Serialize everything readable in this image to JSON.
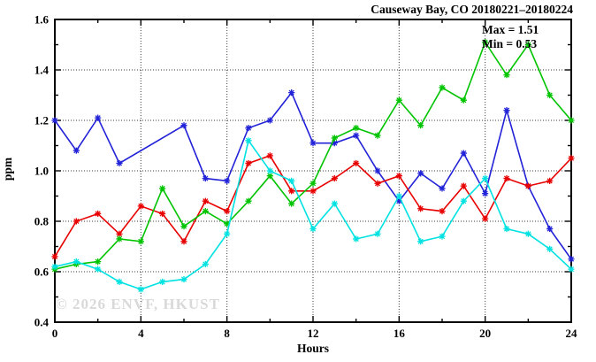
{
  "chart_data": {
    "type": "line",
    "title": "Causeway Bay, CO 20180221–20180224",
    "xlabel": "Hours",
    "ylabel": "ppm",
    "xlim": [
      0,
      24
    ],
    "ylim": [
      0.4,
      1.6
    ],
    "x_tick_labels": [
      "0",
      "4",
      "8",
      "12",
      "16",
      "20",
      "24"
    ],
    "x_major_ticks": [
      0,
      4,
      8,
      12,
      16,
      20,
      24
    ],
    "x_minor_ticks": [
      2,
      6,
      10,
      14,
      18,
      22
    ],
    "y_tick_labels": [
      "0.4",
      "0.6",
      "0.8",
      "1.0",
      "1.2",
      "1.4",
      "1.6"
    ],
    "y_major_ticks": [
      0.4,
      0.6,
      0.8,
      1.0,
      1.2,
      1.4,
      1.6
    ],
    "y_minor_ticks": [
      0.5,
      0.7,
      0.9,
      1.1,
      1.3,
      1.5
    ],
    "grid": {
      "style": "dotted",
      "x_lines": [
        4,
        8,
        12,
        16,
        20
      ],
      "y_lines": [
        0.6,
        0.8,
        1.0,
        1.2,
        1.4
      ]
    },
    "legend": "none",
    "x": [
      0,
      1,
      2,
      3,
      4,
      5,
      6,
      7,
      8,
      9,
      10,
      11,
      12,
      13,
      14,
      15,
      16,
      17,
      18,
      19,
      20,
      21,
      22,
      23,
      24
    ],
    "series": [
      {
        "name": "series-blue",
        "color": "#2222d8",
        "values": [
          1.2,
          1.08,
          1.21,
          1.03,
          null,
          null,
          1.18,
          0.97,
          0.96,
          1.17,
          1.2,
          1.31,
          1.11,
          1.11,
          1.14,
          1.0,
          0.88,
          0.99,
          0.93,
          1.07,
          0.91,
          1.24,
          0.94,
          0.77,
          0.65
        ]
      },
      {
        "name": "series-red",
        "color": "#e80000",
        "values": [
          0.66,
          0.8,
          0.83,
          0.75,
          0.86,
          0.83,
          0.72,
          0.88,
          0.84,
          1.03,
          1.06,
          0.92,
          0.92,
          0.97,
          1.03,
          0.95,
          0.98,
          0.85,
          0.84,
          0.94,
          0.81,
          0.97,
          0.94,
          0.96,
          1.05
        ]
      },
      {
        "name": "series-green",
        "color": "#00c400",
        "values": [
          0.61,
          0.63,
          0.64,
          0.73,
          0.72,
          0.93,
          0.78,
          0.84,
          0.79,
          0.88,
          0.98,
          0.87,
          0.95,
          1.13,
          1.17,
          1.14,
          1.28,
          1.18,
          1.33,
          1.28,
          1.51,
          1.38,
          1.5,
          1.3,
          1.2
        ]
      },
      {
        "name": "series-cyan",
        "color": "#00e2e2",
        "values": [
          0.62,
          0.64,
          0.61,
          0.56,
          0.53,
          0.56,
          0.57,
          0.63,
          0.75,
          1.12,
          1.0,
          0.96,
          0.77,
          0.87,
          0.73,
          0.75,
          0.9,
          0.72,
          0.74,
          0.88,
          0.97,
          0.77,
          0.75,
          0.69,
          0.61
        ]
      }
    ],
    "annotations": {
      "max": "Max = 1.51",
      "min": "Min = 0.53"
    },
    "watermark": "© 2026 ENVF, HKUST"
  }
}
